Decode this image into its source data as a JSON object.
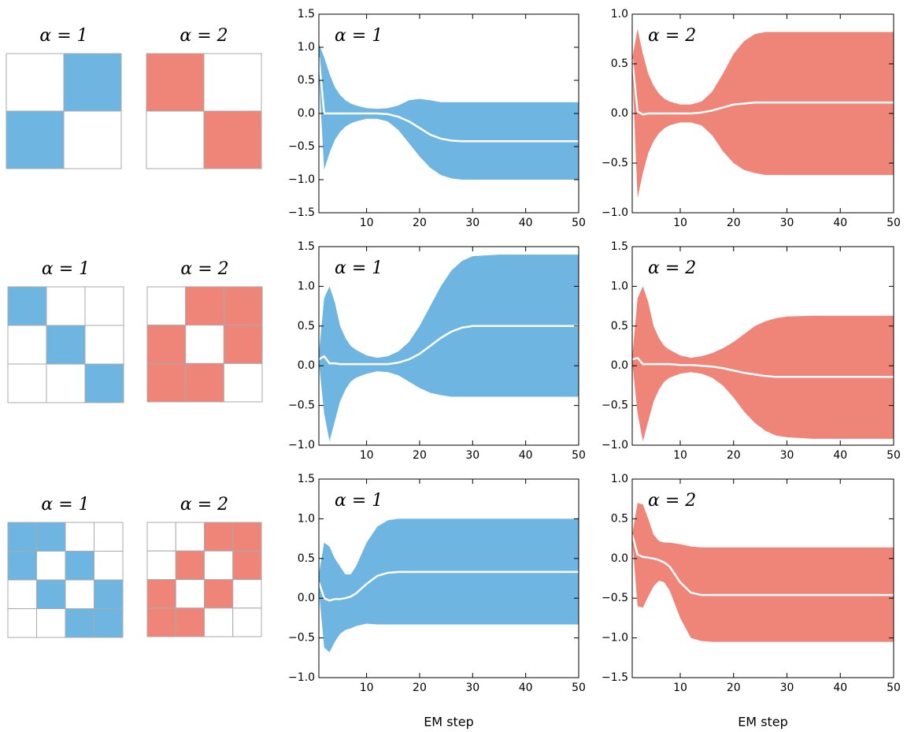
{
  "patterns": [
    {
      "label": "α = 1",
      "color": "#6eb5e2",
      "cells": [
        [
          0,
          1
        ],
        [
          1,
          0
        ]
      ]
    },
    {
      "label": "α = 2",
      "color": "#ef8478",
      "cells": [
        [
          1,
          0
        ],
        [
          0,
          1
        ]
      ]
    },
    {
      "label": "α = 1",
      "color": "#6eb5e2",
      "cells": [
        [
          1,
          0,
          0
        ],
        [
          0,
          1,
          0
        ],
        [
          0,
          0,
          1
        ]
      ]
    },
    {
      "label": "α = 2",
      "color": "#ef8478",
      "cells": [
        [
          0,
          1,
          1
        ],
        [
          1,
          0,
          1
        ],
        [
          1,
          1,
          0
        ]
      ]
    },
    {
      "label": "α = 1",
      "color": "#6eb5e2",
      "cells": [
        [
          1,
          1,
          0,
          0
        ],
        [
          1,
          0,
          1,
          0
        ],
        [
          0,
          1,
          0,
          1
        ],
        [
          0,
          0,
          1,
          1
        ]
      ]
    },
    {
      "label": "α = 2",
      "color": "#ef8478",
      "cells": [
        [
          0,
          0,
          1,
          1
        ],
        [
          0,
          1,
          0,
          1
        ],
        [
          1,
          0,
          1,
          0
        ],
        [
          1,
          1,
          0,
          0
        ]
      ]
    }
  ],
  "chart_data": [
    {
      "type": "area",
      "annotation": "α = 1",
      "color": "#6eb5e2",
      "x": [
        1,
        2,
        3,
        4,
        5,
        6,
        7,
        8,
        10,
        12,
        14,
        16,
        18,
        20,
        22,
        24,
        26,
        28,
        30,
        35,
        40,
        45,
        50
      ],
      "upper": [
        1.05,
        0.85,
        0.6,
        0.4,
        0.28,
        0.2,
        0.15,
        0.12,
        0.08,
        0.07,
        0.08,
        0.12,
        0.2,
        0.22,
        0.2,
        0.17,
        0.17,
        0.17,
        0.17,
        0.17,
        0.17,
        0.17,
        0.17
      ],
      "lower": [
        0.6,
        -0.85,
        -0.6,
        -0.4,
        -0.28,
        -0.2,
        -0.15,
        -0.12,
        -0.08,
        -0.08,
        -0.12,
        -0.25,
        -0.45,
        -0.65,
        -0.82,
        -0.93,
        -0.98,
        -1.0,
        -1.0,
        -1.0,
        -1.0,
        -1.0,
        -1.0
      ],
      "mean": [
        0.85,
        0.0,
        0.0,
        0.0,
        0.0,
        0.0,
        0.0,
        0.0,
        0.0,
        0.0,
        -0.01,
        -0.05,
        -0.12,
        -0.22,
        -0.32,
        -0.38,
        -0.41,
        -0.42,
        -0.42,
        -0.42,
        -0.42,
        -0.42,
        -0.42
      ],
      "xlim": [
        1,
        50
      ],
      "xticks": [
        10,
        20,
        30,
        40,
        50
      ],
      "ylim": [
        -1.5,
        1.5
      ],
      "yticks": [
        {
          "value": -1.5,
          "label": "−1.5"
        },
        {
          "value": -1,
          "label": "−1.0"
        },
        {
          "value": -0.5,
          "label": "−0.5"
        },
        {
          "value": 0,
          "label": "0.0"
        },
        0.5,
        {
          "value": 1,
          "label": "1.0"
        },
        1.5
      ]
    },
    {
      "type": "area",
      "annotation": "α = 2",
      "color": "#ef8478",
      "x": [
        1,
        2,
        3,
        4,
        5,
        6,
        7,
        8,
        10,
        12,
        14,
        16,
        18,
        20,
        22,
        24,
        26,
        28,
        30,
        35,
        40,
        45,
        50
      ],
      "upper": [
        0.55,
        0.85,
        0.6,
        0.4,
        0.28,
        0.2,
        0.15,
        0.12,
        0.09,
        0.09,
        0.12,
        0.22,
        0.4,
        0.6,
        0.73,
        0.8,
        0.82,
        0.82,
        0.82,
        0.82,
        0.82,
        0.82,
        0.82
      ],
      "lower": [
        0.45,
        -0.85,
        -0.6,
        -0.4,
        -0.28,
        -0.2,
        -0.15,
        -0.12,
        -0.09,
        -0.09,
        -0.12,
        -0.22,
        -0.38,
        -0.5,
        -0.57,
        -0.6,
        -0.62,
        -0.62,
        -0.62,
        -0.62,
        -0.62,
        -0.62,
        -0.62
      ],
      "mean": [
        0.55,
        0.02,
        -0.01,
        0.0,
        0.0,
        0.0,
        0.0,
        0.0,
        0.0,
        0.0,
        0.01,
        0.03,
        0.06,
        0.09,
        0.1,
        0.11,
        0.11,
        0.11,
        0.11,
        0.11,
        0.11,
        0.11,
        0.11
      ],
      "xlim": [
        1,
        50
      ],
      "xticks": [
        10,
        20,
        30,
        40,
        50
      ],
      "ylim": [
        -1,
        1
      ],
      "yticks": [
        {
          "value": -1,
          "label": "−1.0"
        },
        {
          "value": -0.5,
          "label": "−0.5"
        },
        {
          "value": 0,
          "label": "0.0"
        },
        0.5,
        {
          "value": 1,
          "label": "1.0"
        }
      ]
    },
    {
      "type": "area",
      "annotation": "α = 1",
      "color": "#6eb5e2",
      "x": [
        1,
        2,
        3,
        4,
        5,
        6,
        7,
        8,
        10,
        12,
        14,
        16,
        18,
        20,
        22,
        24,
        26,
        28,
        30,
        35,
        40,
        45,
        50
      ],
      "upper": [
        0.15,
        0.85,
        1.0,
        0.8,
        0.5,
        0.35,
        0.25,
        0.2,
        0.13,
        0.1,
        0.12,
        0.18,
        0.3,
        0.5,
        0.75,
        1.0,
        1.2,
        1.32,
        1.38,
        1.4,
        1.4,
        1.4,
        1.4
      ],
      "lower": [
        0.05,
        -0.6,
        -0.95,
        -0.7,
        -0.45,
        -0.3,
        -0.2,
        -0.15,
        -0.1,
        -0.07,
        -0.08,
        -0.12,
        -0.2,
        -0.28,
        -0.34,
        -0.37,
        -0.39,
        -0.39,
        -0.39,
        -0.39,
        -0.39,
        -0.39,
        -0.39
      ],
      "mean": [
        0.08,
        0.12,
        0.03,
        0.03,
        0.02,
        0.02,
        0.02,
        0.02,
        0.02,
        0.02,
        0.02,
        0.04,
        0.08,
        0.15,
        0.25,
        0.35,
        0.43,
        0.48,
        0.5,
        0.5,
        0.5,
        0.5,
        0.5
      ],
      "xlim": [
        1,
        50
      ],
      "xticks": [
        10,
        20,
        30,
        40,
        50
      ],
      "ylim": [
        -1,
        1.5
      ],
      "yticks": [
        {
          "value": -1,
          "label": "−1.0"
        },
        {
          "value": -0.5,
          "label": "−0.5"
        },
        {
          "value": 0,
          "label": "0.0"
        },
        0.5,
        {
          "value": 1,
          "label": "1.0"
        },
        1.5
      ]
    },
    {
      "type": "area",
      "annotation": "α = 2",
      "color": "#ef8478",
      "x": [
        1,
        2,
        3,
        4,
        5,
        6,
        7,
        8,
        10,
        12,
        14,
        16,
        18,
        20,
        22,
        24,
        26,
        28,
        30,
        35,
        40,
        45,
        50
      ],
      "upper": [
        0.1,
        0.85,
        1.0,
        0.8,
        0.5,
        0.35,
        0.25,
        0.2,
        0.13,
        0.1,
        0.12,
        0.16,
        0.22,
        0.3,
        0.4,
        0.5,
        0.56,
        0.6,
        0.62,
        0.63,
        0.63,
        0.63,
        0.63
      ],
      "lower": [
        0.05,
        -0.6,
        -0.95,
        -0.7,
        -0.45,
        -0.3,
        -0.2,
        -0.15,
        -0.1,
        -0.08,
        -0.1,
        -0.15,
        -0.25,
        -0.4,
        -0.58,
        -0.72,
        -0.82,
        -0.88,
        -0.9,
        -0.92,
        -0.92,
        -0.92,
        -0.92
      ],
      "mean": [
        0.08,
        0.1,
        0.02,
        0.02,
        0.02,
        0.02,
        0.02,
        0.02,
        0.01,
        0.01,
        0.0,
        -0.01,
        -0.03,
        -0.06,
        -0.09,
        -0.11,
        -0.13,
        -0.14,
        -0.14,
        -0.14,
        -0.14,
        -0.14,
        -0.14
      ],
      "xlim": [
        1,
        50
      ],
      "xticks": [
        10,
        20,
        30,
        40,
        50
      ],
      "ylim": [
        -1,
        1.5
      ],
      "yticks": [
        {
          "value": -1,
          "label": "−1.0"
        },
        {
          "value": -0.5,
          "label": "−0.5"
        },
        {
          "value": 0,
          "label": "0.0"
        },
        0.5,
        {
          "value": 1,
          "label": "1.0"
        },
        1.5
      ]
    },
    {
      "type": "area",
      "annotation": "α = 1",
      "color": "#6eb5e2",
      "xlabel": "EM step",
      "x": [
        1,
        2,
        3,
        4,
        5,
        6,
        7,
        8,
        10,
        12,
        14,
        16,
        18,
        20,
        22,
        24,
        26,
        28,
        30,
        35,
        40,
        45,
        50
      ],
      "upper": [
        0.3,
        0.7,
        0.65,
        0.5,
        0.4,
        0.3,
        0.3,
        0.4,
        0.7,
        0.9,
        0.98,
        1.0,
        1.0,
        1.0,
        1.0,
        1.0,
        1.0,
        1.0,
        1.0,
        1.0,
        1.0,
        1.0,
        1.0
      ],
      "lower": [
        0.1,
        -0.62,
        -0.68,
        -0.55,
        -0.45,
        -0.4,
        -0.38,
        -0.35,
        -0.32,
        -0.33,
        -0.33,
        -0.33,
        -0.33,
        -0.33,
        -0.33,
        -0.33,
        -0.33,
        -0.33,
        -0.33,
        -0.33,
        -0.33,
        -0.33,
        -0.33
      ],
      "mean": [
        0.2,
        0.0,
        -0.03,
        -0.01,
        -0.01,
        0.0,
        0.02,
        0.06,
        0.18,
        0.28,
        0.32,
        0.33,
        0.33,
        0.33,
        0.33,
        0.33,
        0.33,
        0.33,
        0.33,
        0.33,
        0.33,
        0.33,
        0.33
      ],
      "xlim": [
        1,
        50
      ],
      "xticks": [
        10,
        20,
        30,
        40,
        50
      ],
      "ylim": [
        -1,
        1.5
      ],
      "yticks": [
        {
          "value": -1,
          "label": "−1.0"
        },
        {
          "value": -0.5,
          "label": "−0.5"
        },
        {
          "value": 0,
          "label": "0.0"
        },
        0.5,
        {
          "value": 1,
          "label": "1.0"
        },
        1.5
      ]
    },
    {
      "type": "area",
      "annotation": "α = 2",
      "color": "#ef8478",
      "xlabel": "EM step",
      "x": [
        1,
        2,
        3,
        4,
        5,
        6,
        7,
        8,
        10,
        12,
        14,
        16,
        18,
        20,
        22,
        24,
        26,
        28,
        30,
        35,
        40,
        45,
        50
      ],
      "upper": [
        0.3,
        0.7,
        0.68,
        0.5,
        0.3,
        0.22,
        0.2,
        0.2,
        0.18,
        0.15,
        0.14,
        0.14,
        0.14,
        0.14,
        0.14,
        0.14,
        0.14,
        0.14,
        0.14,
        0.14,
        0.14,
        0.14,
        0.14
      ],
      "lower": [
        0.25,
        -0.6,
        -0.62,
        -0.48,
        -0.35,
        -0.28,
        -0.3,
        -0.4,
        -0.75,
        -1.0,
        -1.04,
        -1.05,
        -1.05,
        -1.05,
        -1.05,
        -1.05,
        -1.05,
        -1.05,
        -1.05,
        -1.05,
        -1.05,
        -1.05,
        -1.05
      ],
      "mean": [
        0.3,
        0.05,
        0.02,
        0.01,
        0.0,
        -0.02,
        -0.05,
        -0.1,
        -0.3,
        -0.43,
        -0.46,
        -0.46,
        -0.46,
        -0.46,
        -0.46,
        -0.46,
        -0.46,
        -0.46,
        -0.46,
        -0.46,
        -0.46,
        -0.46,
        -0.46
      ],
      "xlim": [
        1,
        50
      ],
      "xticks": [
        10,
        20,
        30,
        40,
        50
      ],
      "ylim": [
        -1.5,
        1
      ],
      "yticks": [
        {
          "value": -1.5,
          "label": "−1.5"
        },
        {
          "value": -1,
          "label": "−1.0"
        },
        {
          "value": -0.5,
          "label": "−0.5"
        },
        {
          "value": 0,
          "label": "0.0"
        },
        0.5,
        {
          "value": 1,
          "label": "1.0"
        }
      ]
    }
  ]
}
